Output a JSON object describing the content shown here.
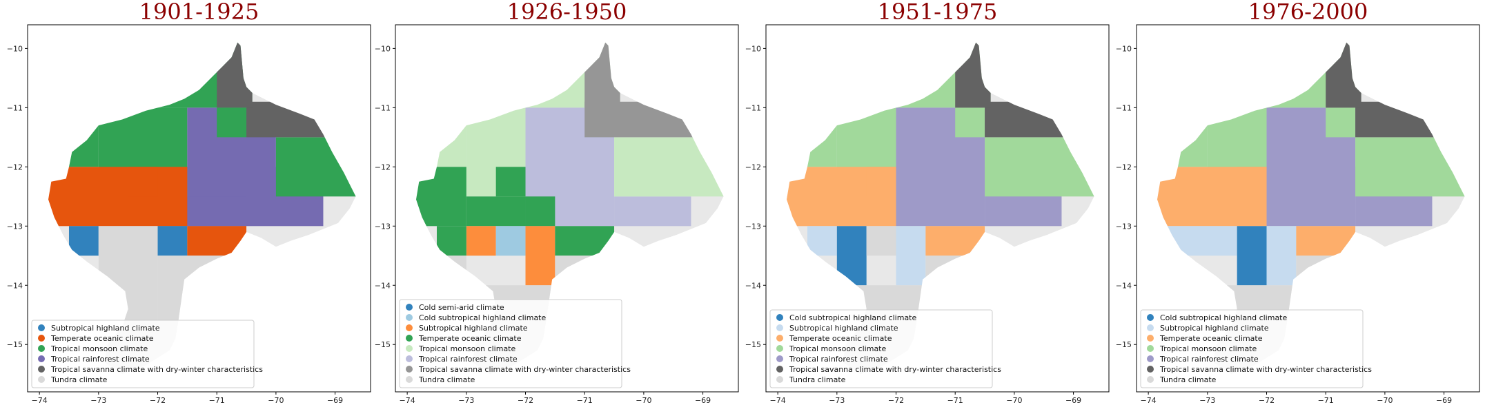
{
  "chart_data": [
    {
      "type": "map",
      "title": "1901-1925",
      "xlim": [
        -74.2,
        -68.4
      ],
      "ylim": [
        -15.8,
        -9.6
      ],
      "xticks": [
        -74,
        -73,
        -72,
        -71,
        -70,
        -69
      ],
      "yticks": [
        -10,
        -11,
        -12,
        -13,
        -14,
        -15
      ],
      "legend_position": "lower-left",
      "legend": [
        {
          "label": "Subtropical highland climate",
          "color": "#3182bd"
        },
        {
          "label": "Temperate oceanic climate",
          "color": "#e6550d"
        },
        {
          "label": "Tropical monsoon climate",
          "color": "#31a354"
        },
        {
          "label": "Tropical rainforest climate",
          "color": "#756bb1"
        },
        {
          "label": "Tropical savanna climate with dry-winter characteristics",
          "color": "#636363"
        },
        {
          "label": "Tundra climate",
          "color": "#d9d9d9"
        }
      ]
    },
    {
      "type": "map",
      "title": "1926-1950",
      "xlim": [
        -74.2,
        -68.4
      ],
      "ylim": [
        -15.8,
        -9.6
      ],
      "xticks": [
        -74,
        -73,
        -72,
        -71,
        -70,
        -69
      ],
      "yticks": [
        -10,
        -11,
        -12,
        -13,
        -14,
        -15
      ],
      "legend_position": "lower-left",
      "legend": [
        {
          "label": "Cold semi-arid climate",
          "color": "#3182bd"
        },
        {
          "label": "Cold subtropical highland climate",
          "color": "#9ecae1"
        },
        {
          "label": "Subtropical highland climate",
          "color": "#fd8d3c"
        },
        {
          "label": "Temperate oceanic climate",
          "color": "#31a354"
        },
        {
          "label": "Tropical monsoon climate",
          "color": "#c7e9c0"
        },
        {
          "label": "Tropical rainforest climate",
          "color": "#bcbddc"
        },
        {
          "label": "Tropical savanna climate with dry-winter characteristics",
          "color": "#969696"
        },
        {
          "label": "Tundra climate",
          "color": "#d9d9d9"
        }
      ]
    },
    {
      "type": "map",
      "title": "1951-1975",
      "xlim": [
        -74.2,
        -68.4
      ],
      "ylim": [
        -15.8,
        -9.6
      ],
      "xticks": [
        -74,
        -73,
        -72,
        -71,
        -70,
        -69
      ],
      "yticks": [
        -10,
        -11,
        -12,
        -13,
        -14,
        -15
      ],
      "legend_position": "lower-left",
      "legend": [
        {
          "label": "Cold subtropical highland climate",
          "color": "#3182bd"
        },
        {
          "label": "Subtropical highland climate",
          "color": "#c6dbef"
        },
        {
          "label": "Temperate oceanic climate",
          "color": "#fdae6b"
        },
        {
          "label": "Tropical monsoon climate",
          "color": "#a1d99b"
        },
        {
          "label": "Tropical rainforest climate",
          "color": "#9e9ac8"
        },
        {
          "label": "Tropical savanna climate with dry-winter characteristics",
          "color": "#636363"
        },
        {
          "label": "Tundra climate",
          "color": "#d9d9d9"
        }
      ]
    },
    {
      "type": "map",
      "title": "1976-2000",
      "xlim": [
        -74.2,
        -68.4
      ],
      "ylim": [
        -15.8,
        -9.6
      ],
      "xticks": [
        -74,
        -73,
        -72,
        -71,
        -70,
        -69
      ],
      "yticks": [
        -10,
        -11,
        -12,
        -13,
        -14,
        -15
      ],
      "legend_position": "lower-left",
      "legend": [
        {
          "label": "Cold subtropical highland climate",
          "color": "#3182bd"
        },
        {
          "label": "Subtropical highland climate",
          "color": "#c6dbef"
        },
        {
          "label": "Temperate oceanic climate",
          "color": "#fdae6b"
        },
        {
          "label": "Tropical monsoon climate",
          "color": "#a1d99b"
        },
        {
          "label": "Tropical rainforest climate",
          "color": "#9e9ac8"
        },
        {
          "label": "Tropical savanna climate with dry-winter characteristics",
          "color": "#636363"
        },
        {
          "label": "Tundra climate",
          "color": "#d9d9d9"
        }
      ]
    }
  ]
}
